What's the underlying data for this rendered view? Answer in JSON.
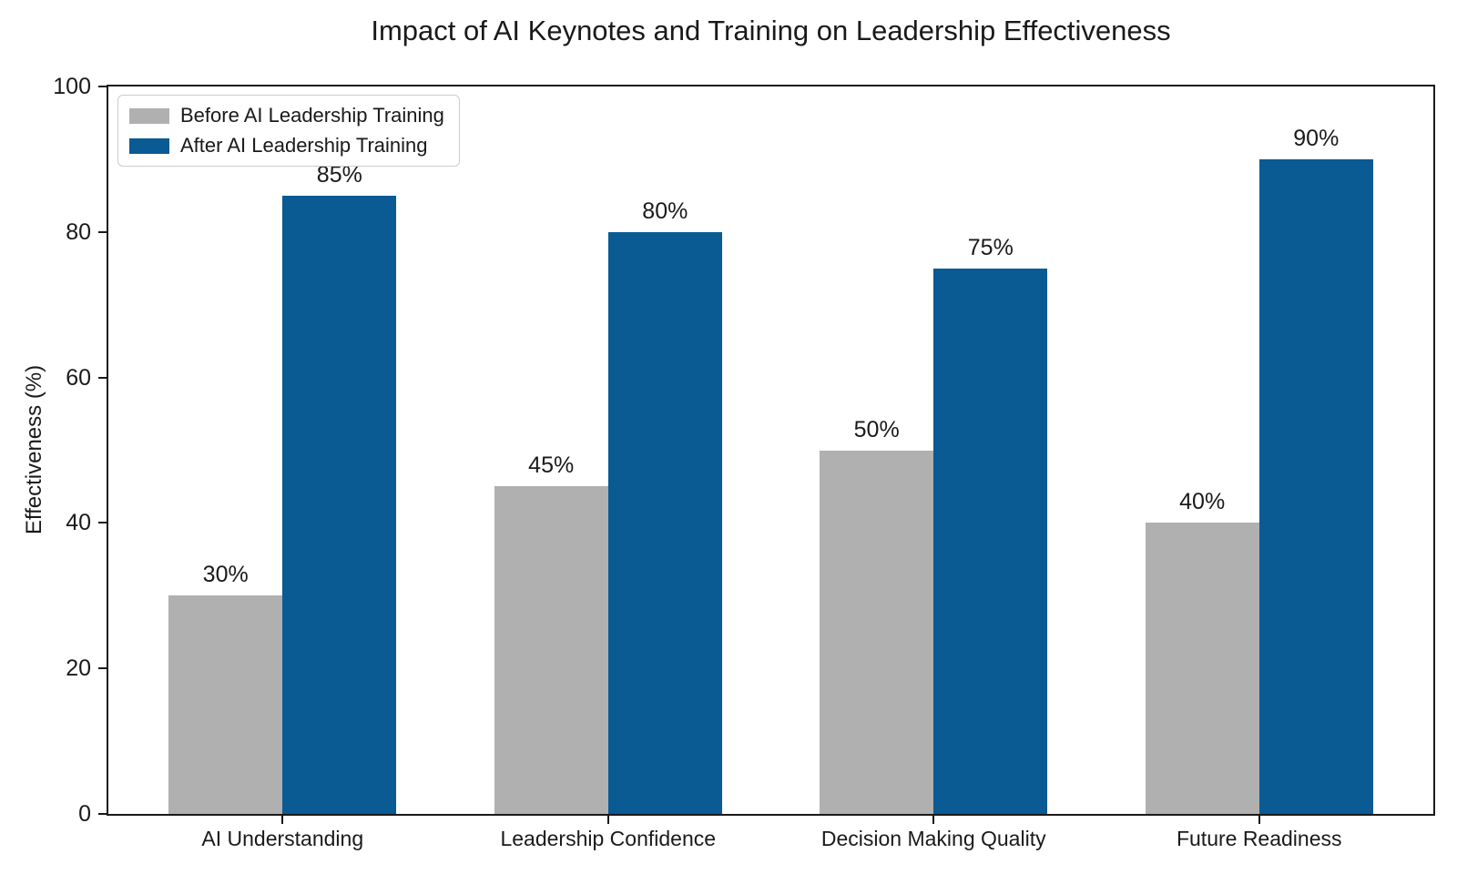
{
  "chart_data": {
    "type": "bar",
    "title": "Impact of AI Keynotes and Training on Leadership Effectiveness",
    "ylabel": "Effectiveness (%)",
    "xlabel": "",
    "categories": [
      "AI Understanding",
      "Leadership Confidence",
      "Decision Making Quality",
      "Future Readiness"
    ],
    "series": [
      {
        "name": "Before AI Leadership Training",
        "key": "before",
        "color": "#b0b0b0",
        "values": [
          30,
          45,
          50,
          40
        ]
      },
      {
        "name": "After AI Leadership Training",
        "key": "after",
        "color": "#0a5a94",
        "values": [
          85,
          80,
          75,
          90
        ]
      }
    ],
    "value_labels": [
      [
        "30%",
        "45%",
        "50%",
        "40%"
      ],
      [
        "85%",
        "80%",
        "75%",
        "90%"
      ]
    ],
    "value_label_suffix": "%",
    "ylim": [
      0,
      100
    ],
    "yticks": [
      0,
      20,
      40,
      60,
      80,
      100
    ],
    "grid": false,
    "legend_position": "upper-left",
    "bar_width_fraction": 0.35
  },
  "colors": {
    "background": "#ffffff",
    "spine": "#1a1a1a",
    "text": "#1a1a1a",
    "bar_before": "#b0b0b0",
    "bar_after": "#0a5a94",
    "legend_border": "#cccccc"
  }
}
